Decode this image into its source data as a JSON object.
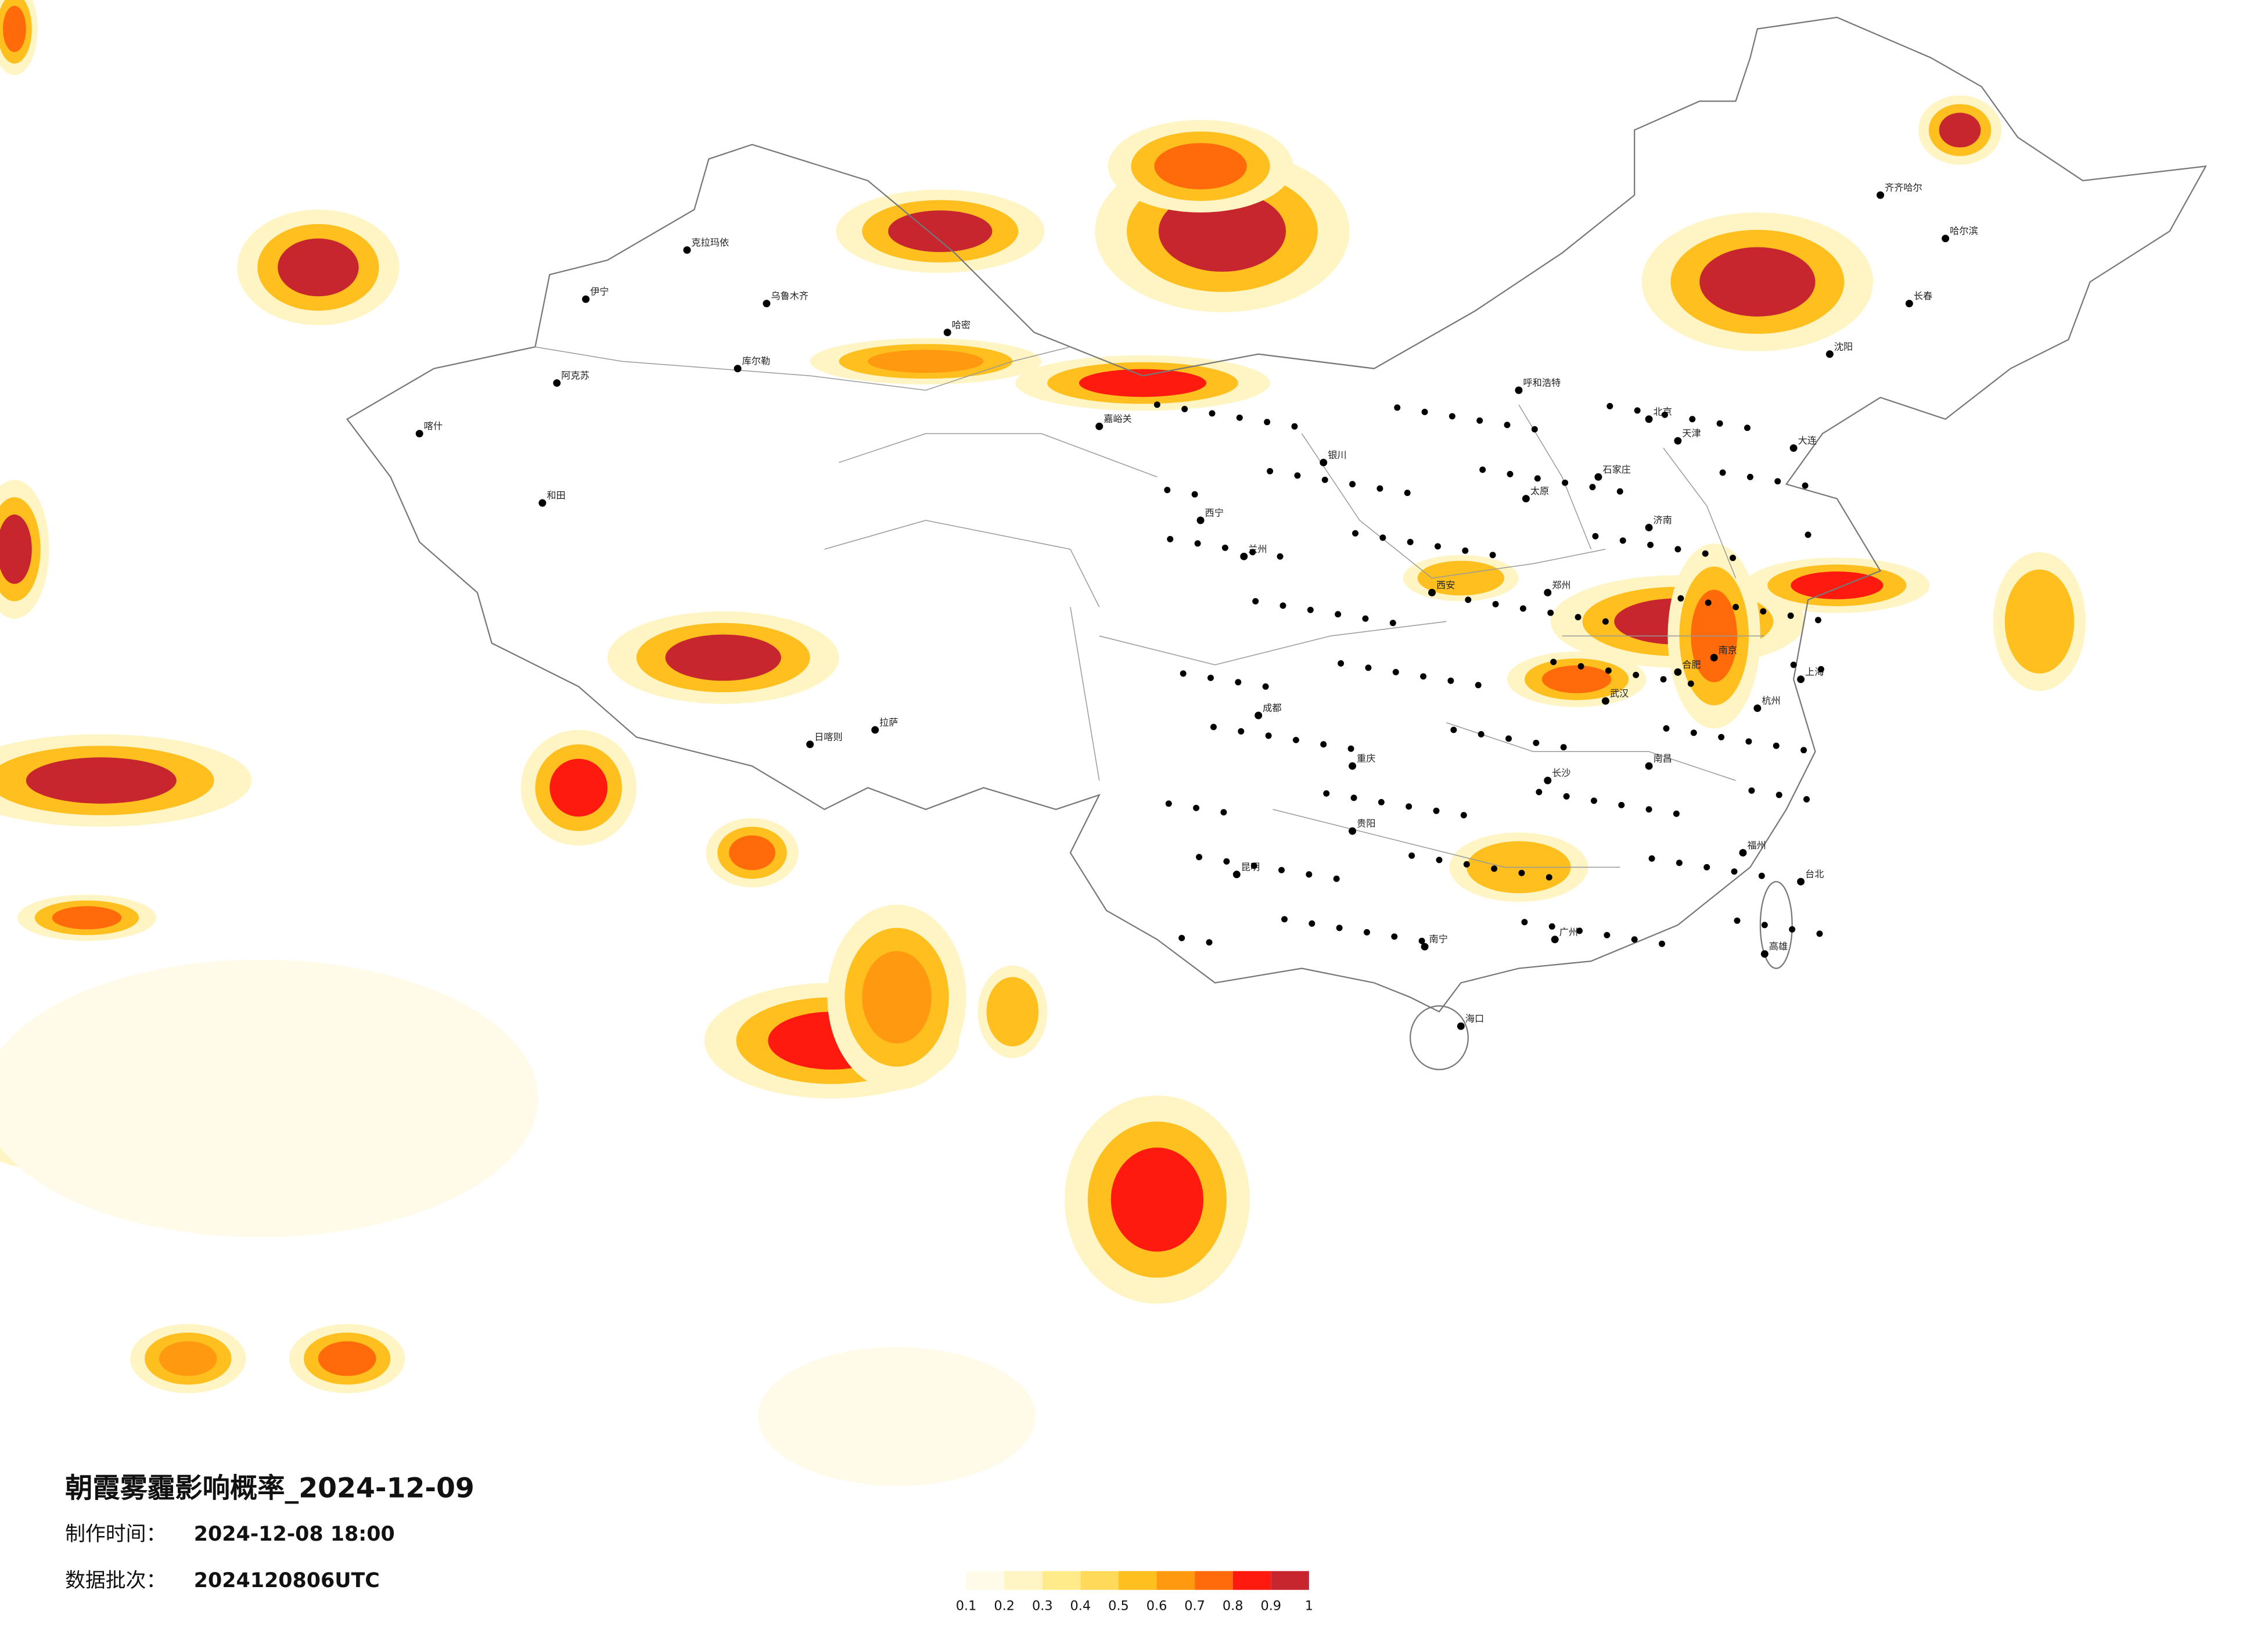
{
  "header": {
    "title": "朝霞雾霾影响概率_2024-12-09",
    "made_label": "制作时间：",
    "made_time": "2024-12-08 18:00",
    "batch_label": "数据批次：",
    "batch": "2024120806UTC"
  },
  "legend": {
    "ticks": [
      0.1,
      0.2,
      0.3,
      0.4,
      0.5,
      0.6,
      0.7,
      0.8,
      0.9,
      1
    ],
    "colors": [
      "#fffbe8",
      "#fff5c4",
      "#ffeb8a",
      "#ffd95a",
      "#ffbf1f",
      "#ff9a10",
      "#ff6a0a",
      "#ff1a10",
      "#c8262e"
    ]
  },
  "cities": [
    "乌鲁木齐",
    "喀什",
    "和田",
    "伊宁",
    "克拉玛依",
    "哈密",
    "库尔勒",
    "阿克苏",
    "嘉峪关",
    "拉萨",
    "日喀则",
    "西宁",
    "兰州",
    "银川",
    "呼和浩特",
    "北京",
    "天津",
    "石家庄",
    "太原",
    "济南",
    "郑州",
    "西安",
    "成都",
    "重庆",
    "贵阳",
    "昆明",
    "南宁",
    "广州",
    "长沙",
    "武汉",
    "南昌",
    "福州",
    "杭州",
    "上海",
    "南京",
    "合肥",
    "沈阳",
    "长春",
    "哈尔滨",
    "齐齐哈尔",
    "大连",
    "海口",
    "台北",
    "高雄"
  ]
}
